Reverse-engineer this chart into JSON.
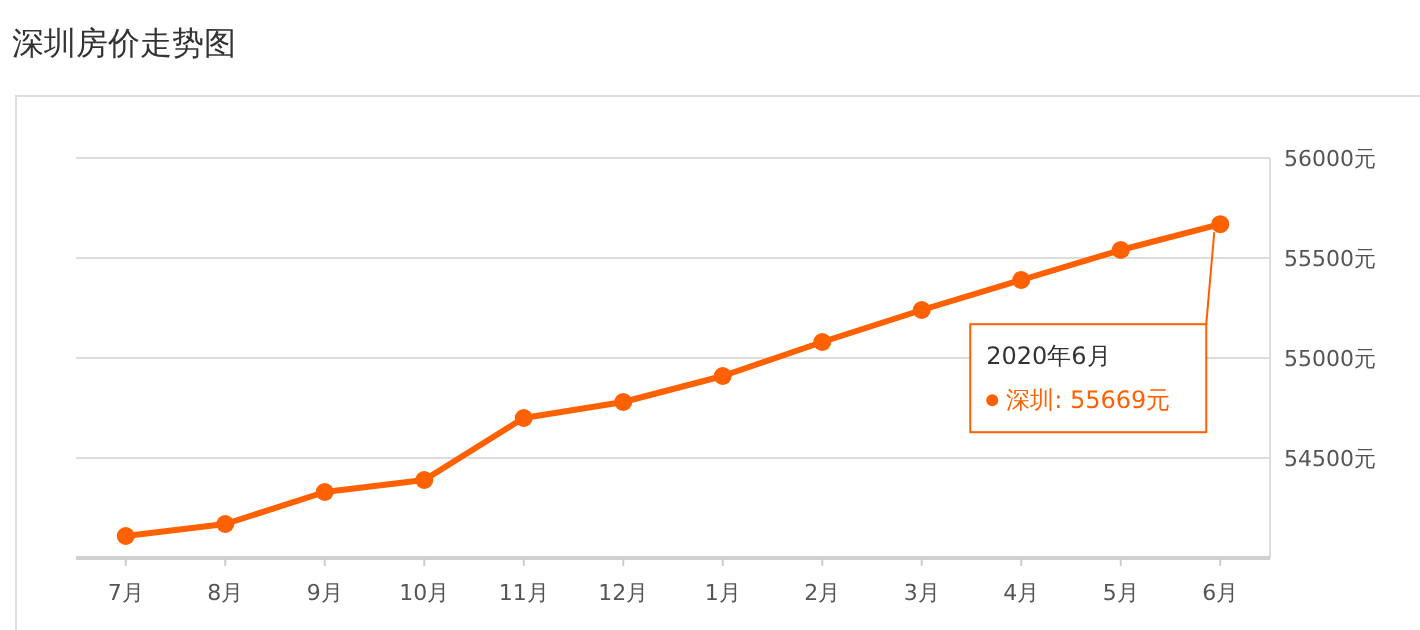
{
  "chart_data": {
    "type": "line",
    "title": "深圳房价走势图",
    "categories": [
      "7月",
      "8月",
      "9月",
      "10月",
      "11月",
      "12月",
      "1月",
      "2月",
      "3月",
      "4月",
      "5月",
      "6月"
    ],
    "values": [
      54110,
      54170,
      54330,
      54390,
      54700,
      54780,
      54910,
      55080,
      55240,
      55390,
      55540,
      55669
    ],
    "color": "#ff6000",
    "marker": "circle",
    "line_style": "solid",
    "grid": "y",
    "ylim": [
      54000,
      56000
    ],
    "yticks": [
      {
        "value": 54500,
        "label": "54500元"
      },
      {
        "value": 55000,
        "label": "55000元"
      },
      {
        "value": 55500,
        "label": "55500元"
      },
      {
        "value": 56000,
        "label": "56000元"
      }
    ],
    "annotations": [
      "2020年6月",
      "深圳:  55669元"
    ]
  }
}
